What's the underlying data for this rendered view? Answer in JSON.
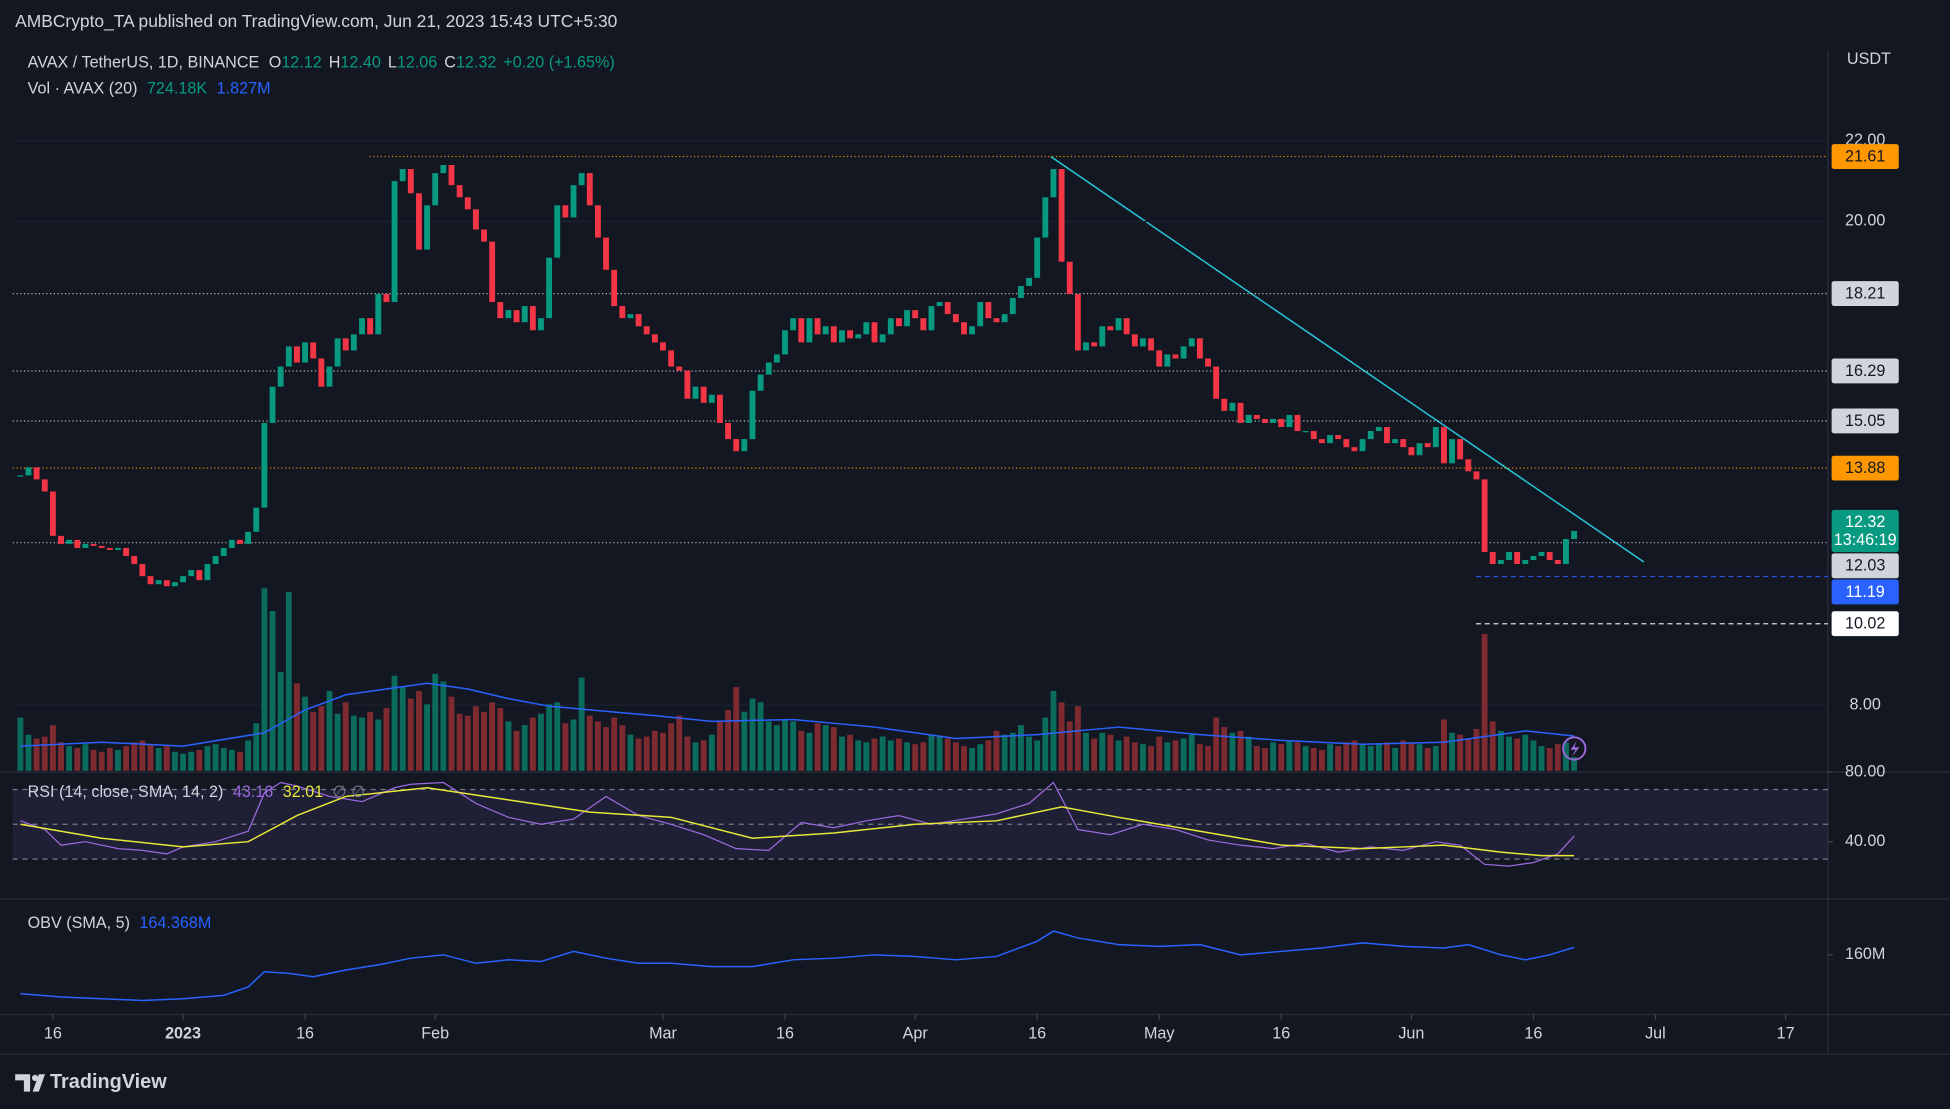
{
  "header": {
    "published": "AMBCrypto_TA published on TradingView.com, Jun 21, 2023 15:43 UTC+5:30"
  },
  "chart_data": {
    "type": "candlestick",
    "symbol": "AVAX / TetherUS, 1D, BINANCE",
    "ohlc": [
      {
        "label": "O",
        "value": "12.12"
      },
      {
        "label": "H",
        "value": "12.40"
      },
      {
        "label": "L",
        "value": "12.06"
      },
      {
        "label": "C",
        "value": "12.32"
      }
    ],
    "change": "+0.20 (+1.65%)",
    "currency": "USDT",
    "up_color": "#089981",
    "down_color": "#f23645",
    "xlim": [
      -0.94,
      222.2
    ],
    "xticks": [
      {
        "value": 4,
        "label": "16"
      },
      {
        "value": 20,
        "label": "2023"
      },
      {
        "value": 35,
        "label": "16"
      },
      {
        "value": 51,
        "label": "Feb"
      },
      {
        "value": 79,
        "label": "Mar"
      },
      {
        "value": 94,
        "label": "16"
      },
      {
        "value": 110,
        "label": "Apr"
      },
      {
        "value": 125,
        "label": "16"
      },
      {
        "value": 140,
        "label": "May"
      },
      {
        "value": 155,
        "label": "16"
      },
      {
        "value": 171,
        "label": "Jun"
      },
      {
        "value": 186,
        "label": "16"
      },
      {
        "value": 201,
        "label": "Jul"
      },
      {
        "value": 217,
        "label": "17"
      }
    ],
    "ylim": [
      6.37,
      24.26
    ],
    "yticks": [
      {
        "value": 8,
        "label": "8.00"
      },
      {
        "value": 20,
        "label": "20.00"
      },
      {
        "value": 22,
        "label": "22.00"
      }
    ],
    "close": [
      13.7,
      13.9,
      13.6,
      13.3,
      12.2,
      12.0,
      12.1,
      11.9,
      12.0,
      11.95,
      11.9,
      11.85,
      11.9,
      11.7,
      11.5,
      11.2,
      11.0,
      11.1,
      10.95,
      11.05,
      11.2,
      11.35,
      11.1,
      11.5,
      11.7,
      11.9,
      12.1,
      12.0,
      12.3,
      12.9,
      15.0,
      15.9,
      16.4,
      16.9,
      16.5,
      17.0,
      16.6,
      15.9,
      16.4,
      17.1,
      16.8,
      17.2,
      17.6,
      17.2,
      18.2,
      18.0,
      21.0,
      21.3,
      20.7,
      19.3,
      20.4,
      21.2,
      21.4,
      20.9,
      20.6,
      20.3,
      19.8,
      19.5,
      18.0,
      17.6,
      17.8,
      17.5,
      17.9,
      17.3,
      17.6,
      19.1,
      20.4,
      20.1,
      20.9,
      21.2,
      20.4,
      19.6,
      18.8,
      17.9,
      17.6,
      17.7,
      17.4,
      17.2,
      17.0,
      16.8,
      16.4,
      16.3,
      15.6,
      15.9,
      15.5,
      15.7,
      15.0,
      14.6,
      14.3,
      14.6,
      15.8,
      16.2,
      16.5,
      16.7,
      17.3,
      17.6,
      17.0,
      17.6,
      17.2,
      17.4,
      17.0,
      17.3,
      17.1,
      17.2,
      17.5,
      17.0,
      17.2,
      17.6,
      17.4,
      17.8,
      17.6,
      17.3,
      17.9,
      18.0,
      17.7,
      17.5,
      17.2,
      17.4,
      18.0,
      17.6,
      17.5,
      17.7,
      18.1,
      18.4,
      18.6,
      19.6,
      20.6,
      21.3,
      19.0,
      18.2,
      16.8,
      17.0,
      16.9,
      17.4,
      17.3,
      17.6,
      17.2,
      16.9,
      17.1,
      16.8,
      16.4,
      16.7,
      16.6,
      16.9,
      17.1,
      16.6,
      16.4,
      15.6,
      15.3,
      15.5,
      15.0,
      15.2,
      15.1,
      15.0,
      15.1,
      14.9,
      15.2,
      14.8,
      14.8,
      14.6,
      14.5,
      14.7,
      14.6,
      14.4,
      14.3,
      14.6,
      14.8,
      14.9,
      14.5,
      14.6,
      14.4,
      14.2,
      14.5,
      14.4,
      14.9,
      14.0,
      14.6,
      14.1,
      13.8,
      13.6,
      11.8,
      11.5,
      11.6,
      11.8,
      11.5,
      11.6,
      11.7,
      11.8,
      11.6,
      11.5,
      12.12,
      12.32
    ],
    "levels": [
      {
        "value": 21.61,
        "color": "#ff9800",
        "text_color": "#131722",
        "style": "dotted"
      },
      {
        "value": 18.21,
        "color": "#d1d4dc",
        "text_color": "#131722",
        "style": "dotted"
      },
      {
        "value": 16.29,
        "color": "#d1d4dc",
        "text_color": "#131722",
        "style": "dotted"
      },
      {
        "value": 15.05,
        "color": "#d1d4dc",
        "text_color": "#131722",
        "style": "dotted"
      },
      {
        "value": 13.88,
        "color": "#ff9800",
        "text_color": "#131722",
        "style": "dotted"
      },
      {
        "value": 12.03,
        "color": "#d1d4dc",
        "text_color": "#131722",
        "style": "dotted"
      },
      {
        "value": 11.19,
        "color": "#2962ff",
        "text_color": "#ffffff",
        "style": "dashed"
      },
      {
        "value": 10.02,
        "color": "#ffffff",
        "text_color": "#131722",
        "style": "dashed"
      }
    ],
    "last": {
      "value": 12.32,
      "countdown": "13:46:19",
      "color": "#089981"
    },
    "volume": {
      "name": "Vol · AVAX (20)",
      "value_label": "724.18K",
      "sma_label": "1.827M",
      "up_color": "#0b6b5c",
      "down_color": "#7d2a30",
      "sma_color": "#2962ff",
      "values": [
        2.8,
        1.9,
        1.7,
        1.8,
        2.4,
        1.5,
        1.3,
        1.2,
        1.4,
        1.1,
        1.0,
        1.2,
        1.1,
        1.3,
        1.5,
        1.6,
        1.4,
        1.2,
        1.3,
        1.0,
        0.9,
        1.0,
        1.1,
        1.3,
        1.4,
        1.2,
        1.1,
        1.0,
        1.6,
        2.5,
        9.6,
        8.4,
        5.2,
        9.4,
        4.6,
        3.9,
        3.1,
        3.4,
        4.2,
        3.0,
        3.6,
        2.9,
        2.8,
        3.1,
        2.7,
        3.3,
        5.0,
        4.4,
        3.8,
        4.2,
        3.5,
        5.1,
        4.7,
        3.9,
        3.0,
        2.9,
        3.4,
        3.1,
        3.6,
        3.3,
        2.6,
        2.1,
        2.4,
        2.8,
        3.0,
        3.5,
        3.6,
        2.5,
        2.7,
        4.9,
        2.9,
        2.6,
        2.3,
        2.8,
        2.4,
        1.9,
        1.7,
        1.8,
        2.1,
        2.0,
        2.5,
        2.9,
        1.8,
        1.5,
        1.6,
        1.9,
        2.6,
        3.2,
        4.4,
        3.1,
        3.8,
        3.6,
        2.6,
        2.4,
        2.7,
        2.6,
        2.1,
        2.0,
        2.5,
        2.4,
        2.3,
        1.8,
        1.9,
        1.6,
        1.5,
        1.7,
        1.8,
        1.6,
        1.7,
        1.5,
        1.4,
        1.5,
        1.9,
        1.8,
        1.7,
        1.5,
        1.3,
        1.2,
        1.4,
        1.6,
        2.1,
        1.9,
        2.0,
        2.4,
        1.8,
        1.6,
        2.8,
        4.2,
        3.6,
        2.6,
        3.4,
        2.0,
        1.7,
        2.0,
        1.9,
        1.6,
        1.8,
        1.5,
        1.4,
        1.3,
        1.8,
        1.5,
        1.6,
        1.7,
        1.9,
        1.4,
        1.3,
        2.8,
        2.3,
        2.0,
        2.1,
        1.8,
        1.3,
        1.2,
        1.5,
        1.4,
        1.6,
        1.5,
        1.3,
        1.2,
        1.1,
        1.4,
        1.3,
        1.5,
        1.6,
        1.4,
        1.3,
        1.4,
        1.5,
        1.2,
        1.6,
        1.5,
        1.4,
        1.2,
        1.3,
        2.7,
        2.0,
        1.9,
        1.7,
        2.2,
        7.2,
        2.6,
        2.1,
        1.8,
        1.7,
        1.9,
        1.6,
        1.3,
        1.2,
        1.4,
        1.5,
        0.72418
      ],
      "sma": {
        "x": [
          0,
          10,
          20,
          30,
          35,
          40,
          45,
          50,
          55,
          60,
          65,
          70,
          78,
          85,
          95,
          105,
          115,
          125,
          135,
          145,
          155,
          165,
          175,
          185,
          191
        ],
        "values": [
          1.3,
          1.5,
          1.3,
          2.0,
          3.2,
          4.0,
          4.3,
          4.6,
          4.3,
          3.8,
          3.4,
          3.2,
          2.9,
          2.6,
          2.7,
          2.3,
          1.7,
          1.9,
          2.3,
          1.9,
          1.6,
          1.4,
          1.5,
          2.1,
          1.827
        ]
      }
    },
    "rsi": {
      "name": "RSI (14, close, SMA, 14, 2)",
      "value_label": "43.16",
      "sma_label": "32.01",
      "extra": "∅ ∅",
      "ylim": [
        7.9,
        80.7
      ],
      "yticks": [
        {
          "value": 80,
          "label": "80.00"
        },
        {
          "value": 40,
          "label": "40.00"
        }
      ],
      "band": [
        30,
        70
      ],
      "midline": 50,
      "color": "#9c6ade",
      "sma_color": "#e8e83a",
      "x": [
        0,
        3,
        5,
        8,
        12,
        15,
        18,
        20,
        24,
        28,
        30,
        32,
        34,
        38,
        42,
        46,
        48,
        52,
        56,
        60,
        64,
        68,
        72,
        76,
        80,
        84,
        88,
        92,
        96,
        100,
        104,
        108,
        112,
        116,
        120,
        124,
        127,
        130,
        134,
        138,
        142,
        146,
        150,
        154,
        158,
        162,
        166,
        170,
        174,
        177,
        180,
        183,
        186,
        189,
        191
      ],
      "values": [
        52,
        47,
        38,
        40,
        36,
        35,
        33,
        37,
        40,
        46,
        68,
        74,
        72,
        66,
        63,
        71,
        73,
        74,
        62,
        54,
        50,
        53,
        66,
        55,
        50,
        44,
        36,
        35,
        51,
        48,
        52,
        55,
        50,
        53,
        56,
        62,
        74,
        47,
        44,
        50,
        47,
        41,
        38,
        36,
        39,
        34,
        37,
        35,
        40,
        38,
        27,
        26,
        28,
        33,
        43.16
      ],
      "sma": {
        "x": [
          0,
          10,
          20,
          28,
          34,
          40,
          50,
          60,
          70,
          80,
          90,
          100,
          110,
          120,
          128,
          135,
          145,
          155,
          165,
          175,
          182,
          187,
          191
        ],
        "values": [
          50,
          42,
          37,
          40,
          55,
          66,
          71,
          64,
          57,
          54,
          42,
          45,
          50,
          52,
          60,
          54,
          46,
          38,
          36,
          38,
          34,
          32,
          32.01
        ]
      }
    },
    "obv": {
      "name": "OBV (SMA, 5)",
      "value_label": "164.368M",
      "color": "#2962ff",
      "ylim": [
        125.4,
        191.6
      ],
      "yticks": [
        {
          "value": 160,
          "label": "160M"
        }
      ],
      "x": [
        0,
        5,
        10,
        15,
        20,
        25,
        28,
        30,
        33,
        36,
        40,
        44,
        48,
        52,
        56,
        60,
        64,
        68,
        72,
        76,
        80,
        85,
        90,
        95,
        100,
        105,
        110,
        115,
        120,
        125,
        127,
        130,
        135,
        140,
        145,
        150,
        155,
        160,
        165,
        170,
        175,
        178,
        182,
        185,
        188,
        191
      ],
      "values": [
        137,
        135,
        134,
        133,
        134,
        136,
        141,
        150,
        149,
        147,
        151,
        154,
        158,
        160,
        155,
        157,
        156,
        162,
        158,
        155,
        155,
        153,
        153,
        157,
        158,
        160,
        159,
        157,
        159,
        168,
        174,
        170,
        166,
        165,
        166,
        160,
        162,
        164,
        167,
        165,
        164,
        166,
        160,
        157,
        160,
        164.368
      ]
    }
  },
  "footer": {
    "brand": "TradingView"
  }
}
